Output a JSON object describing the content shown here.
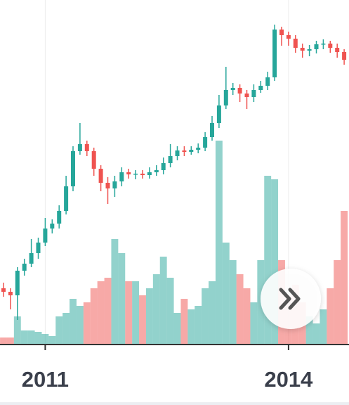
{
  "chart_data": {
    "type": "candlestick",
    "categories": [
      null,
      null,
      null,
      null,
      null,
      null,
      "2011",
      null,
      null,
      null,
      null,
      null,
      null,
      null,
      null,
      null,
      null,
      null,
      null,
      null,
      null,
      null,
      null,
      null,
      null,
      null,
      null,
      null,
      null,
      null,
      null,
      null,
      null,
      null,
      null,
      null,
      null,
      null,
      null,
      null,
      null,
      "2014",
      null,
      null,
      null,
      null,
      null,
      null,
      null,
      null
    ],
    "open": [
      80,
      75,
      70,
      105,
      115,
      130,
      145,
      165,
      172,
      190,
      225,
      275,
      285,
      275,
      250,
      230,
      222,
      232,
      245,
      242,
      243,
      241,
      245,
      248,
      258,
      268,
      276,
      274,
      277,
      280,
      295,
      315,
      340,
      362,
      365,
      357,
      352,
      362,
      368,
      380,
      448,
      440,
      435,
      422,
      418,
      420,
      427,
      428,
      422,
      416
    ],
    "high": [
      88,
      80,
      110,
      122,
      150,
      152,
      180,
      178,
      198,
      240,
      282,
      315,
      290,
      280,
      255,
      238,
      240,
      252,
      250,
      248,
      248,
      252,
      255,
      266,
      285,
      282,
      282,
      282,
      286,
      302,
      325,
      355,
      395,
      372,
      370,
      362,
      370,
      375,
      388,
      455,
      452,
      445,
      440,
      428,
      426,
      432,
      434,
      432,
      428,
      420
    ],
    "low": [
      68,
      50,
      35,
      98,
      110,
      122,
      140,
      158,
      165,
      185,
      218,
      270,
      268,
      240,
      218,
      200,
      210,
      225,
      236,
      235,
      236,
      236,
      240,
      242,
      252,
      262,
      268,
      270,
      272,
      275,
      290,
      308,
      335,
      355,
      345,
      335,
      345,
      358,
      362,
      375,
      425,
      425,
      415,
      408,
      410,
      414,
      420,
      415,
      408,
      398
    ],
    "close": [
      75,
      70,
      105,
      115,
      130,
      145,
      165,
      172,
      190,
      225,
      275,
      285,
      275,
      250,
      230,
      222,
      232,
      245,
      242,
      243,
      241,
      245,
      248,
      258,
      268,
      276,
      274,
      277,
      280,
      295,
      315,
      340,
      362,
      365,
      357,
      352,
      362,
      368,
      380,
      448,
      440,
      435,
      422,
      418,
      420,
      427,
      428,
      422,
      416,
      405
    ],
    "volume": [
      10,
      10,
      40,
      20,
      20,
      18,
      15,
      12,
      40,
      45,
      65,
      55,
      60,
      80,
      90,
      95,
      150,
      130,
      90,
      90,
      70,
      80,
      100,
      125,
      95,
      45,
      65,
      50,
      55,
      80,
      90,
      290,
      145,
      120,
      100,
      80,
      60,
      120,
      240,
      235,
      120,
      70,
      85,
      60,
      40,
      30,
      50,
      80,
      120,
      190
    ],
    "up_color": "#26a69a",
    "down_color": "#ef5350",
    "ylim": [
      0,
      490
    ]
  }
}
